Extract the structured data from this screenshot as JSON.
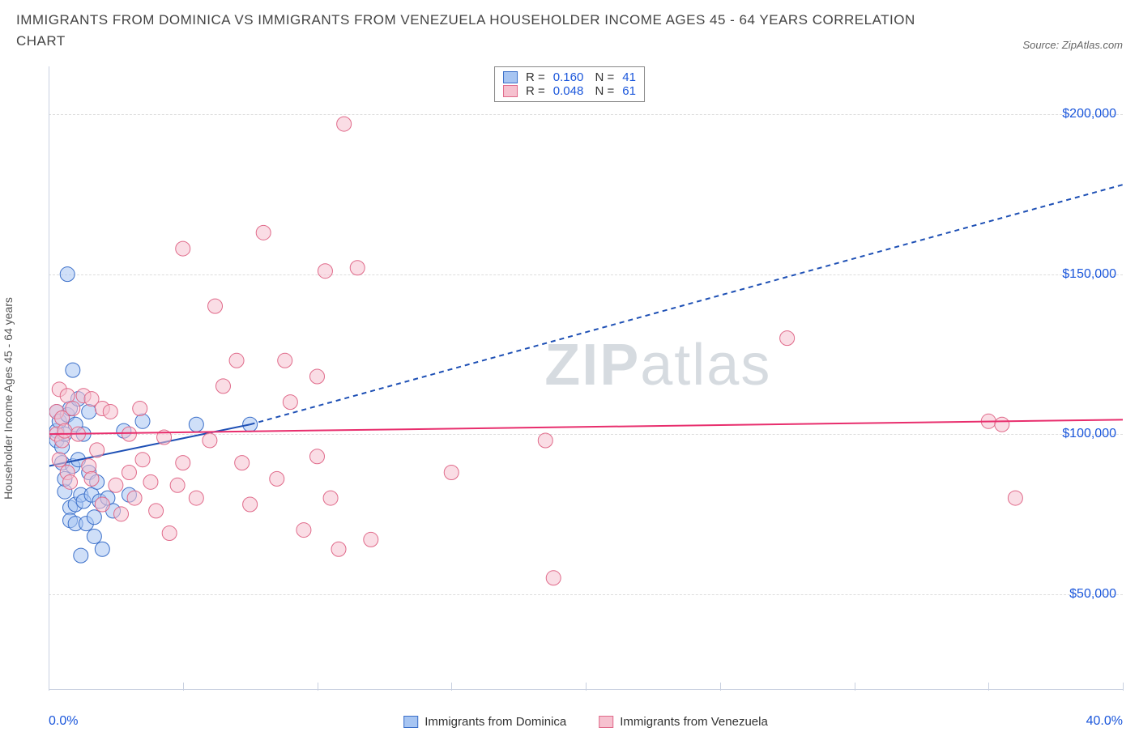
{
  "title": "IMMIGRANTS FROM DOMINICA VS IMMIGRANTS FROM VENEZUELA HOUSEHOLDER INCOME AGES 45 - 64 YEARS CORRELATION CHART",
  "source": "Source: ZipAtlas.com",
  "watermark_bold": "ZIP",
  "watermark_thin": "atlas",
  "chart": {
    "type": "scatter",
    "background_color": "#ffffff",
    "grid_color": "#dddddd",
    "axis_color": "#c8d0e0",
    "tick_label_color": "#1a56db",
    "ylabel": "Householder Income Ages 45 - 64 years",
    "ylabel_fontsize": 14,
    "xlim": [
      0,
      40
    ],
    "ylim": [
      20000,
      215000
    ],
    "xticks": [
      0,
      5,
      10,
      15,
      20,
      25,
      30,
      35,
      40
    ],
    "xtick_labels_shown": {
      "0": "0.0%",
      "40": "40.0%"
    },
    "yticks": [
      50000,
      100000,
      150000,
      200000
    ],
    "ytick_labels": [
      "$50,000",
      "$100,000",
      "$150,000",
      "$200,000"
    ],
    "marker_radius": 9,
    "marker_opacity": 0.55,
    "series": [
      {
        "name": "Immigrants from Dominica",
        "key": "dominica",
        "fill": "#a7c5f2",
        "stroke": "#3b6fc9",
        "R": "0.160",
        "N": "41",
        "trend": {
          "x1": 0,
          "y1": 90000,
          "x2": 7.5,
          "y2": 103000,
          "solid": true,
          "ext_x1": 7.5,
          "ext_y1": 103000,
          "ext_x2": 40,
          "ext_y2": 178000,
          "color": "#1e50b5",
          "width": 2
        },
        "points": [
          [
            0.3,
            101000
          ],
          [
            0.3,
            107000
          ],
          [
            0.3,
            98000
          ],
          [
            0.4,
            104000
          ],
          [
            0.5,
            96000
          ],
          [
            0.5,
            91000
          ],
          [
            0.6,
            100000
          ],
          [
            0.6,
            82000
          ],
          [
            0.6,
            86000
          ],
          [
            0.7,
            150000
          ],
          [
            0.7,
            106000
          ],
          [
            0.8,
            108000
          ],
          [
            0.8,
            77000
          ],
          [
            0.8,
            73000
          ],
          [
            0.9,
            120000
          ],
          [
            0.9,
            90000
          ],
          [
            1.0,
            103000
          ],
          [
            1.0,
            78000
          ],
          [
            1.0,
            72000
          ],
          [
            1.1,
            92000
          ],
          [
            1.1,
            111000
          ],
          [
            1.2,
            62000
          ],
          [
            1.2,
            81000
          ],
          [
            1.3,
            100000
          ],
          [
            1.3,
            79000
          ],
          [
            1.4,
            72000
          ],
          [
            1.5,
            88000
          ],
          [
            1.5,
            107000
          ],
          [
            1.6,
            81000
          ],
          [
            1.7,
            74000
          ],
          [
            1.7,
            68000
          ],
          [
            1.8,
            85000
          ],
          [
            1.9,
            79000
          ],
          [
            2.0,
            64000
          ],
          [
            2.2,
            80000
          ],
          [
            2.4,
            76000
          ],
          [
            2.8,
            101000
          ],
          [
            3.0,
            81000
          ],
          [
            3.5,
            104000
          ],
          [
            5.5,
            103000
          ],
          [
            7.5,
            103000
          ]
        ]
      },
      {
        "name": "Immigrants from Venezuela",
        "key": "venezuela",
        "fill": "#f6c1cf",
        "stroke": "#e06a8a",
        "R": "0.048",
        "N": "61",
        "trend": {
          "x1": 0,
          "y1": 100000,
          "x2": 40,
          "y2": 104500,
          "solid": true,
          "color": "#e82e6d",
          "width": 2
        },
        "points": [
          [
            0.3,
            107000
          ],
          [
            0.3,
            100000
          ],
          [
            0.4,
            114000
          ],
          [
            0.4,
            92000
          ],
          [
            0.5,
            98000
          ],
          [
            0.5,
            105000
          ],
          [
            0.6,
            101000
          ],
          [
            0.7,
            88000
          ],
          [
            0.7,
            112000
          ],
          [
            0.8,
            85000
          ],
          [
            0.9,
            108000
          ],
          [
            1.1,
            100000
          ],
          [
            1.3,
            112000
          ],
          [
            1.5,
            90000
          ],
          [
            1.6,
            111000
          ],
          [
            1.6,
            86000
          ],
          [
            1.8,
            95000
          ],
          [
            2.0,
            108000
          ],
          [
            2.0,
            78000
          ],
          [
            2.3,
            107000
          ],
          [
            2.5,
            84000
          ],
          [
            2.7,
            75000
          ],
          [
            3.0,
            100000
          ],
          [
            3.0,
            88000
          ],
          [
            3.2,
            80000
          ],
          [
            3.4,
            108000
          ],
          [
            3.5,
            92000
          ],
          [
            3.8,
            85000
          ],
          [
            4.0,
            76000
          ],
          [
            4.3,
            99000
          ],
          [
            4.5,
            69000
          ],
          [
            4.8,
            84000
          ],
          [
            5.0,
            158000
          ],
          [
            5.0,
            91000
          ],
          [
            5.5,
            80000
          ],
          [
            6.0,
            98000
          ],
          [
            6.2,
            140000
          ],
          [
            6.5,
            115000
          ],
          [
            7.0,
            123000
          ],
          [
            7.2,
            91000
          ],
          [
            7.5,
            78000
          ],
          [
            8.0,
            163000
          ],
          [
            8.5,
            86000
          ],
          [
            8.8,
            123000
          ],
          [
            9.0,
            110000
          ],
          [
            9.5,
            70000
          ],
          [
            10.0,
            93000
          ],
          [
            10.0,
            118000
          ],
          [
            10.3,
            151000
          ],
          [
            10.5,
            80000
          ],
          [
            10.8,
            64000
          ],
          [
            11.0,
            197000
          ],
          [
            11.5,
            152000
          ],
          [
            12.0,
            67000
          ],
          [
            15.0,
            88000
          ],
          [
            18.5,
            98000
          ],
          [
            18.8,
            55000
          ],
          [
            27.5,
            130000
          ],
          [
            35.0,
            104000
          ],
          [
            35.5,
            103000
          ],
          [
            36.0,
            80000
          ]
        ]
      }
    ]
  },
  "legend_bottom": [
    {
      "label": "Immigrants from Dominica",
      "fill": "#a7c5f2",
      "stroke": "#3b6fc9"
    },
    {
      "label": "Immigrants from Venezuela",
      "fill": "#f6c1cf",
      "stroke": "#e06a8a"
    }
  ]
}
